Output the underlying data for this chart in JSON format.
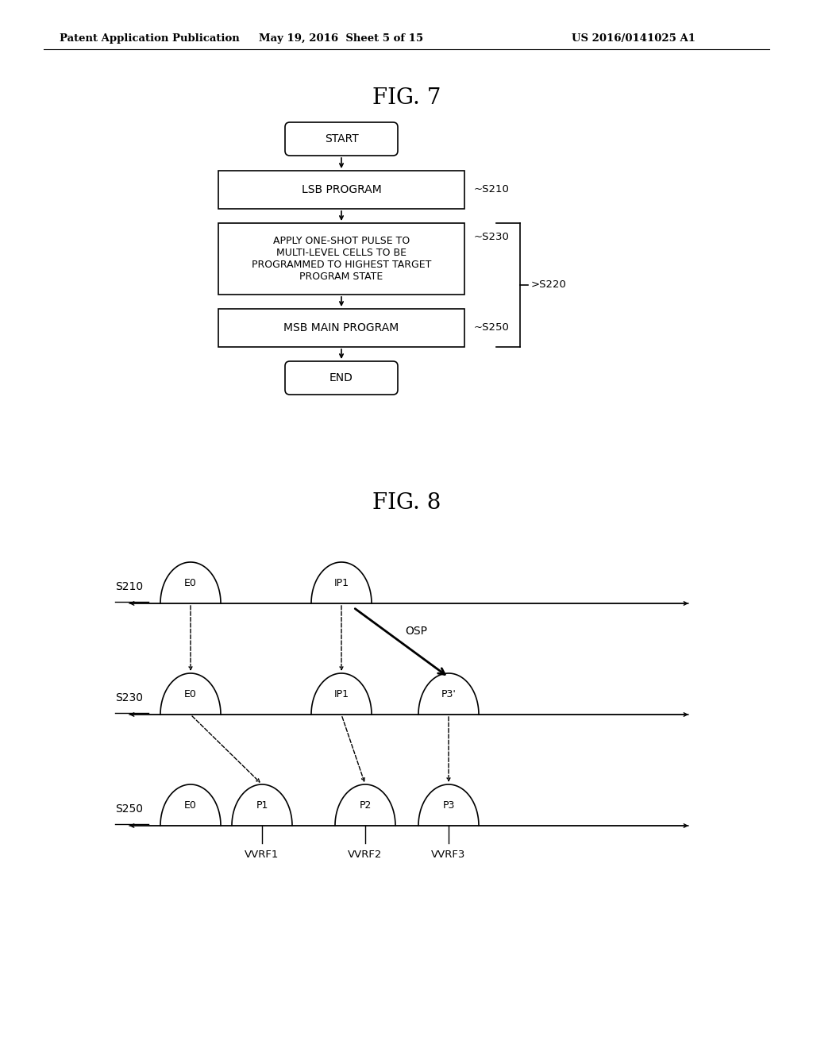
{
  "background_color": "#ffffff",
  "header_left": "Patent Application Publication",
  "header_mid": "May 19, 2016  Sheet 5 of 15",
  "header_right": "US 2016/0141025 A1",
  "fig7_title": "FIG. 7",
  "fig8_title": "FIG. 8",
  "flowchart": {
    "start_label": "START",
    "box1_label": "LSB PROGRAM",
    "box1_ref": "S210",
    "box2_label": "APPLY ONE-SHOT PULSE TO\nMULTI-LEVEL CELLS TO BE\nPROGRAMMED TO HIGHEST TARGET\nPROGRAM STATE",
    "box2_ref": "S230",
    "box3_label": "MSB MAIN PROGRAM",
    "box3_ref": "S250",
    "brace_ref": "S220",
    "end_label": "END"
  },
  "fig8": {
    "osp_label": "OSP",
    "vrf_labels": [
      "VVRF1",
      "VVRF2",
      "VVRF3"
    ]
  }
}
